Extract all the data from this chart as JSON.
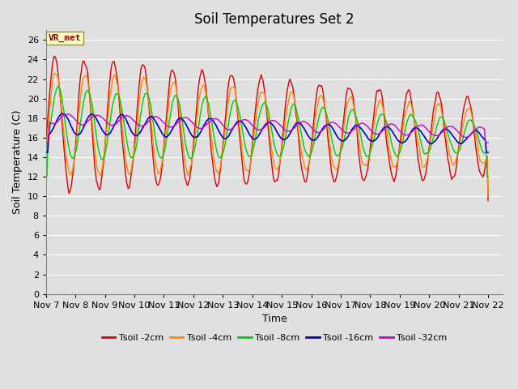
{
  "title": "Soil Temperatures Set 2",
  "xlabel": "Time",
  "ylabel": "Soil Temperature (C)",
  "annotation": "VR_met",
  "ylim": [
    0,
    27
  ],
  "yticks": [
    0,
    2,
    4,
    6,
    8,
    10,
    12,
    14,
    16,
    18,
    20,
    22,
    24,
    26
  ],
  "xlim": [
    0,
    15.5
  ],
  "series": {
    "Tsoil -2cm": {
      "color": "#dd0000",
      "lw": 1.0
    },
    "Tsoil -4cm": {
      "color": "#ff8800",
      "lw": 1.0
    },
    "Tsoil -8cm": {
      "color": "#00cc00",
      "lw": 1.0
    },
    "Tsoil -16cm": {
      "color": "#0000cc",
      "lw": 1.2
    },
    "Tsoil -32cm": {
      "color": "#cc00cc",
      "lw": 1.0
    }
  },
  "plot_bg_color": "#e0e0e0",
  "grid_color": "#ffffff",
  "title_fontsize": 12,
  "label_fontsize": 9,
  "tick_fontsize": 8,
  "num_points": 500,
  "xtick_labels": [
    "Nov 7",
    "Nov 8",
    "Nov 9",
    "Nov 10",
    "Nov 11",
    "Nov 12",
    "Nov 13",
    "Nov 14",
    "Nov 15",
    "Nov 16",
    "Nov 17",
    "Nov 18",
    "Nov 19",
    "Nov 20",
    "Nov 21",
    "Nov 22"
  ]
}
